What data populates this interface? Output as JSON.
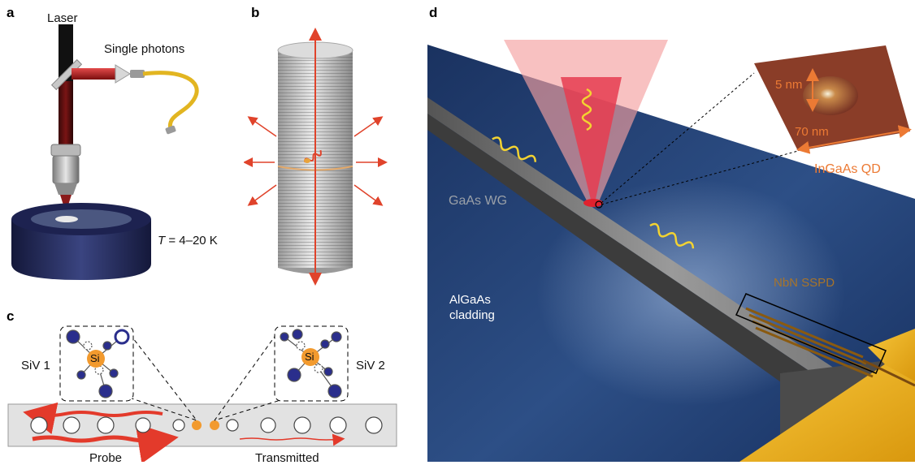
{
  "panels": {
    "a": {
      "letter": "a",
      "laser_label": "Laser",
      "photons_label": "Single photons",
      "temperature_var": "T",
      "temperature_value": " = 4–20 K"
    },
    "b": {
      "letter": "b"
    },
    "c": {
      "letter": "c",
      "siv1_label": "SiV 1",
      "siv2_label": "SiV 2",
      "si_label_1": "Si",
      "si_label_2": "Si",
      "probe_label": "Probe",
      "transmitted_label": "Transmitted"
    },
    "d": {
      "letter": "d",
      "height_label": "5 nm",
      "width_label": "70 nm",
      "qd_label": "InGaAs QD",
      "waveguide_label": "GaAs WG",
      "cladding_label_line1": "AlGaAs",
      "cladding_label_line2": "cladding",
      "detector_label": "NbN SSPD"
    }
  },
  "colors": {
    "arrow_red": "#e0432b",
    "navy": "#1c2f60",
    "gold": "#f2b323",
    "qd_orange": "#ec7a34",
    "yellow_wave": "#f3d331",
    "siv_blue": "#2a2e8c",
    "si_orange": "#f29a2e"
  }
}
